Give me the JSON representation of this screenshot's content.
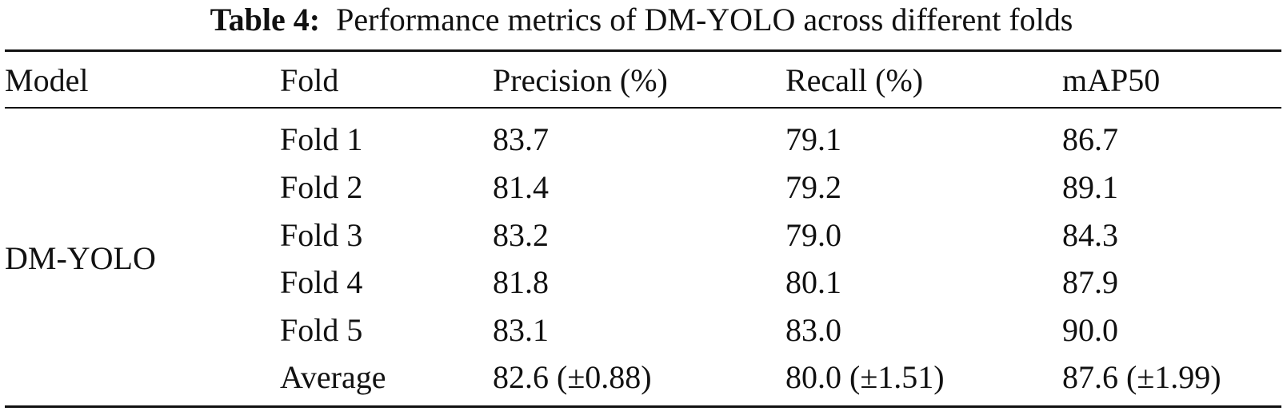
{
  "caption": {
    "label": "Table 4:",
    "text": "Performance metrics of DM-YOLO across different folds"
  },
  "table": {
    "headers": [
      "Model",
      "Fold",
      "Precision (%)",
      "Recall (%)",
      "mAP50"
    ],
    "model": "DM-YOLO",
    "rows": [
      {
        "fold": "Fold 1",
        "precision": "83.7",
        "recall": "79.1",
        "map50": "86.7"
      },
      {
        "fold": "Fold 2",
        "precision": "81.4",
        "recall": "79.2",
        "map50": "89.1"
      },
      {
        "fold": "Fold 3",
        "precision": "83.2",
        "recall": "79.0",
        "map50": "84.3"
      },
      {
        "fold": "Fold 4",
        "precision": "81.8",
        "recall": "80.1",
        "map50": "87.9"
      },
      {
        "fold": "Fold 5",
        "precision": "83.1",
        "recall": "83.0",
        "map50": "90.0"
      },
      {
        "fold": "Average",
        "precision": "82.6 (±0.88)",
        "recall": "80.0 (±1.51)",
        "map50": "87.6 (±1.99)"
      }
    ]
  }
}
